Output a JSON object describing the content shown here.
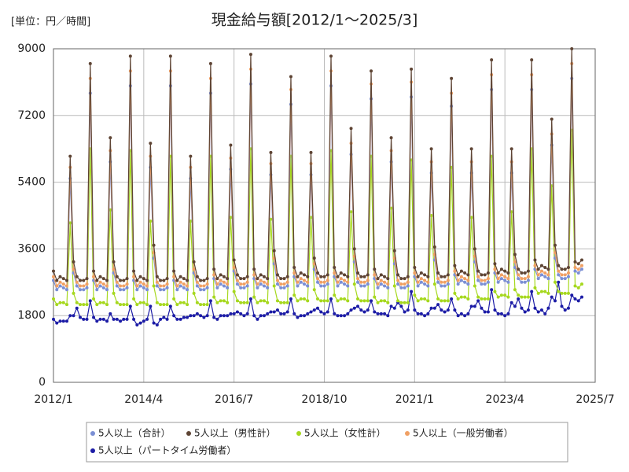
{
  "chart_data": {
    "type": "line",
    "title": "現金給与額[2012/1～2025/3]",
    "unit_label": "[単位：円／時間]",
    "x": [
      "2012/1",
      "2012/2",
      "2012/3",
      "2012/4",
      "2012/5",
      "2012/6",
      "2012/7",
      "2012/8",
      "2012/9",
      "2012/10",
      "2012/11",
      "2012/12",
      "2013/1",
      "2013/2",
      "2013/3",
      "2013/4",
      "2013/5",
      "2013/6",
      "2013/7",
      "2013/8",
      "2013/9",
      "2013/10",
      "2013/11",
      "2013/12",
      "2014/1",
      "2014/2",
      "2014/3",
      "2014/4",
      "2014/5",
      "2014/6",
      "2014/7",
      "2014/8",
      "2014/9",
      "2014/10",
      "2014/11",
      "2014/12",
      "2015/1",
      "2015/2",
      "2015/3",
      "2015/4",
      "2015/5",
      "2015/6",
      "2015/7",
      "2015/8",
      "2015/9",
      "2015/10",
      "2015/11",
      "2015/12",
      "2016/1",
      "2016/2",
      "2016/3",
      "2016/4",
      "2016/5",
      "2016/6",
      "2016/7",
      "2016/8",
      "2016/9",
      "2016/10",
      "2016/11",
      "2016/12",
      "2017/1",
      "2017/2",
      "2017/3",
      "2017/4",
      "2017/5",
      "2017/6",
      "2017/7",
      "2017/8",
      "2017/9",
      "2017/10",
      "2017/11",
      "2017/12",
      "2018/1",
      "2018/2",
      "2018/3",
      "2018/4",
      "2018/5",
      "2018/6",
      "2018/7",
      "2018/8",
      "2018/9",
      "2018/10",
      "2018/11",
      "2018/12",
      "2019/1",
      "2019/2",
      "2019/3",
      "2019/4",
      "2019/5",
      "2019/6",
      "2019/7",
      "2019/8",
      "2019/9",
      "2019/10",
      "2019/11",
      "2019/12",
      "2020/1",
      "2020/2",
      "2020/3",
      "2020/4",
      "2020/5",
      "2020/6",
      "2020/7",
      "2020/8",
      "2020/9",
      "2020/10",
      "2020/11",
      "2020/12",
      "2021/1",
      "2021/2",
      "2021/3",
      "2021/4",
      "2021/5",
      "2021/6",
      "2021/7",
      "2021/8",
      "2021/9",
      "2021/10",
      "2021/11",
      "2021/12",
      "2022/1",
      "2022/2",
      "2022/3",
      "2022/4",
      "2022/5",
      "2022/6",
      "2022/7",
      "2022/8",
      "2022/9",
      "2022/10",
      "2022/11",
      "2022/12",
      "2023/1",
      "2023/2",
      "2023/3",
      "2023/4",
      "2023/5",
      "2023/6",
      "2023/7",
      "2023/8",
      "2023/9",
      "2023/10",
      "2023/11",
      "2023/12",
      "2024/1",
      "2024/2",
      "2024/3",
      "2024/4",
      "2024/5",
      "2024/6",
      "2024/7",
      "2024/8",
      "2024/9",
      "2024/10",
      "2024/11",
      "2024/12",
      "2025/1",
      "2025/2",
      "2025/3"
    ],
    "series": [
      {
        "name": "5人以上（合計）",
        "color": "#7b8fd4",
        "values": [
          2750,
          2500,
          2600,
          2550,
          2500,
          5500,
          2950,
          2600,
          2500,
          2500,
          2550,
          7800,
          2750,
          2500,
          2600,
          2550,
          2500,
          5950,
          2950,
          2600,
          2500,
          2500,
          2550,
          8000,
          2750,
          2500,
          2600,
          2550,
          2500,
          5800,
          3350,
          2600,
          2500,
          2500,
          2550,
          8000,
          2750,
          2500,
          2600,
          2550,
          2500,
          5500,
          2950,
          2600,
          2500,
          2500,
          2550,
          7800,
          2800,
          2550,
          2650,
          2600,
          2550,
          5750,
          3000,
          2650,
          2550,
          2550,
          2600,
          8050,
          2800,
          2550,
          2650,
          2600,
          2550,
          5600,
          3200,
          2650,
          2550,
          2550,
          2600,
          7500,
          2850,
          2600,
          2700,
          2650,
          2600,
          5600,
          3050,
          2700,
          2600,
          2600,
          2650,
          8000,
          2850,
          2600,
          2700,
          2650,
          2600,
          6150,
          3250,
          2700,
          2600,
          2600,
          2650,
          7650,
          2800,
          2550,
          2650,
          2600,
          2550,
          5950,
          3200,
          2650,
          2550,
          2550,
          2600,
          7700,
          2850,
          2600,
          2700,
          2650,
          2600,
          5650,
          3300,
          2700,
          2600,
          2600,
          2650,
          7450,
          2900,
          2650,
          2750,
          2700,
          2650,
          5650,
          3250,
          2750,
          2650,
          2650,
          2700,
          7900,
          2950,
          2700,
          2800,
          2750,
          2700,
          5650,
          3100,
          2800,
          2700,
          2700,
          2750,
          7900,
          3050,
          2800,
          2900,
          2850,
          2800,
          6400,
          3350,
          2900,
          2800,
          2800,
          2850,
          8200,
          3000,
          2950,
          3050
        ]
      },
      {
        "name": "5人以上（男性計）",
        "color": "#5e4434",
        "values": [
          3000,
          2750,
          2850,
          2800,
          2750,
          6100,
          3250,
          2850,
          2750,
          2750,
          2800,
          8600,
          3000,
          2750,
          2850,
          2800,
          2750,
          6600,
          3250,
          2850,
          2750,
          2750,
          2800,
          8800,
          3000,
          2750,
          2850,
          2800,
          2750,
          6450,
          3700,
          2850,
          2750,
          2750,
          2800,
          8800,
          3000,
          2750,
          2850,
          2800,
          2750,
          6100,
          3250,
          2850,
          2750,
          2750,
          2800,
          8600,
          3050,
          2800,
          2900,
          2850,
          2800,
          6400,
          3300,
          2900,
          2800,
          2800,
          2850,
          8850,
          3050,
          2800,
          2900,
          2850,
          2800,
          6200,
          3550,
          2900,
          2800,
          2800,
          2850,
          8250,
          3100,
          2850,
          2950,
          2900,
          2850,
          6200,
          3350,
          2950,
          2850,
          2850,
          2900,
          8800,
          3100,
          2850,
          2950,
          2900,
          2850,
          6850,
          3600,
          2950,
          2850,
          2850,
          2900,
          8400,
          3050,
          2800,
          2900,
          2850,
          2800,
          6600,
          3550,
          2900,
          2800,
          2800,
          2850,
          8450,
          3100,
          2850,
          2950,
          2900,
          2850,
          6300,
          3650,
          2950,
          2850,
          2850,
          2900,
          8200,
          3150,
          2900,
          3000,
          2950,
          2900,
          6300,
          3600,
          3000,
          2900,
          2900,
          2950,
          8700,
          3200,
          2950,
          3050,
          3000,
          2950,
          6300,
          3450,
          3050,
          2950,
          2950,
          3000,
          8700,
          3300,
          3050,
          3150,
          3100,
          3050,
          7100,
          3700,
          3150,
          3050,
          3050,
          3100,
          9000,
          3250,
          3200,
          3300
        ]
      },
      {
        "name": "5人以上（女性計）",
        "color": "#a6d81e",
        "values": [
          2250,
          2100,
          2150,
          2150,
          2100,
          4300,
          2400,
          2150,
          2100,
          2100,
          2100,
          6300,
          2250,
          2100,
          2150,
          2150,
          2100,
          4650,
          2400,
          2150,
          2100,
          2100,
          2100,
          6250,
          2250,
          2100,
          2150,
          2150,
          2100,
          4350,
          2600,
          2150,
          2100,
          2100,
          2100,
          6100,
          2250,
          2100,
          2150,
          2150,
          2100,
          4350,
          2400,
          2150,
          2100,
          2100,
          2100,
          6100,
          2300,
          2150,
          2200,
          2200,
          2150,
          4450,
          2450,
          2200,
          2150,
          2150,
          2150,
          6300,
          2300,
          2150,
          2200,
          2200,
          2150,
          4400,
          2600,
          2200,
          2150,
          2150,
          2150,
          6100,
          2350,
          2200,
          2250,
          2250,
          2200,
          4450,
          2500,
          2250,
          2200,
          2200,
          2200,
          6250,
          2350,
          2200,
          2250,
          2250,
          2200,
          4600,
          2650,
          2250,
          2200,
          2200,
          2200,
          6100,
          2300,
          2150,
          2200,
          2200,
          2150,
          4700,
          2600,
          2200,
          2150,
          2150,
          2150,
          6000,
          2350,
          2200,
          2250,
          2250,
          2200,
          4500,
          2650,
          2250,
          2200,
          2200,
          2200,
          5800,
          2400,
          2250,
          2300,
          2300,
          2250,
          4450,
          2600,
          2300,
          2250,
          2250,
          2250,
          6100,
          2450,
          2300,
          2350,
          2350,
          2300,
          4600,
          2500,
          2350,
          2300,
          2300,
          2300,
          6300,
          2550,
          2400,
          2450,
          2450,
          2400,
          5300,
          2700,
          2450,
          2400,
          2400,
          2400,
          6800,
          2600,
          2550,
          2650
        ]
      },
      {
        "name": "5人以上（一般労働者）",
        "color": "#f0a064",
        "values": [
          2850,
          2600,
          2700,
          2650,
          2600,
          5800,
          3050,
          2700,
          2600,
          2600,
          2650,
          8200,
          2850,
          2600,
          2700,
          2650,
          2600,
          6250,
          3050,
          2700,
          2600,
          2600,
          2650,
          8400,
          2850,
          2600,
          2700,
          2650,
          2600,
          6100,
          3500,
          2700,
          2600,
          2600,
          2650,
          8400,
          2850,
          2600,
          2700,
          2650,
          2600,
          5800,
          3050,
          2700,
          2600,
          2600,
          2650,
          8200,
          2900,
          2650,
          2750,
          2700,
          2650,
          6050,
          3100,
          2750,
          2650,
          2650,
          2700,
          8450,
          2900,
          2650,
          2750,
          2700,
          2650,
          5900,
          3350,
          2750,
          2650,
          2650,
          2700,
          7900,
          2950,
          2700,
          2800,
          2750,
          2700,
          5900,
          3200,
          2800,
          2700,
          2700,
          2750,
          8400,
          2950,
          2700,
          2800,
          2750,
          2700,
          6450,
          3400,
          2800,
          2700,
          2700,
          2750,
          8050,
          2900,
          2650,
          2750,
          2700,
          2650,
          6250,
          3350,
          2750,
          2650,
          2650,
          2700,
          8100,
          2950,
          2700,
          2800,
          2750,
          2700,
          5950,
          3450,
          2800,
          2700,
          2700,
          2750,
          7800,
          3000,
          2750,
          2850,
          2800,
          2750,
          5950,
          3400,
          2850,
          2750,
          2750,
          2800,
          8300,
          3050,
          2800,
          2900,
          2850,
          2800,
          5950,
          3250,
          2900,
          2800,
          2800,
          2850,
          8300,
          3150,
          2900,
          3000,
          2950,
          2900,
          6700,
          3500,
          3000,
          2900,
          2900,
          2950,
          8600,
          3100,
          3050,
          3150
        ]
      },
      {
        "name": "5人以上（パートタイム労働者）",
        "color": "#1c1ca6",
        "values": [
          1700,
          1600,
          1650,
          1650,
          1650,
          1800,
          1800,
          2000,
          1750,
          1700,
          1700,
          2200,
          1750,
          1650,
          1700,
          1700,
          1650,
          1850,
          1700,
          1700,
          1650,
          1700,
          1700,
          2050,
          1700,
          1550,
          1600,
          1650,
          1700,
          2050,
          1600,
          1550,
          1700,
          1750,
          1700,
          2050,
          1800,
          1700,
          1700,
          1750,
          1750,
          1800,
          1800,
          1850,
          1800,
          1750,
          1800,
          2200,
          1750,
          1700,
          1800,
          1800,
          1800,
          1850,
          1850,
          1900,
          1850,
          1800,
          1850,
          2250,
          1800,
          1700,
          1800,
          1800,
          1850,
          1900,
          1900,
          1950,
          1850,
          1850,
          1900,
          2250,
          1850,
          1750,
          1800,
          1800,
          1850,
          1900,
          1950,
          2000,
          1900,
          1850,
          1900,
          2250,
          1850,
          1800,
          1800,
          1800,
          1850,
          1950,
          2000,
          2050,
          1950,
          1900,
          1950,
          2200,
          1900,
          1850,
          1850,
          1850,
          1800,
          2050,
          2000,
          2150,
          2050,
          1900,
          1950,
          2450,
          1950,
          1850,
          1850,
          1800,
          1850,
          2000,
          2000,
          2100,
          1950,
          1900,
          1950,
          2250,
          1950,
          1800,
          1850,
          1800,
          1850,
          2050,
          2050,
          2200,
          2000,
          1900,
          1900,
          2500,
          1950,
          1850,
          1850,
          1800,
          1850,
          2150,
          2050,
          2250,
          2000,
          1900,
          1950,
          2450,
          2000,
          1900,
          1950,
          1850,
          2000,
          2300,
          2200,
          2700,
          2050,
          1950,
          2000,
          2350,
          2250,
          2200,
          2300
        ]
      }
    ],
    "xlim": [
      "2012/1",
      "2025/7"
    ],
    "xticks": [
      "2012/1",
      "2014/4",
      "2016/7",
      "2018/10",
      "2021/1",
      "2023/4",
      "2025/7"
    ],
    "ylim": [
      0,
      9000
    ],
    "yticks": [
      0,
      1800,
      3600,
      5400,
      7200,
      9000
    ],
    "grid": true,
    "legend": "bottom"
  }
}
